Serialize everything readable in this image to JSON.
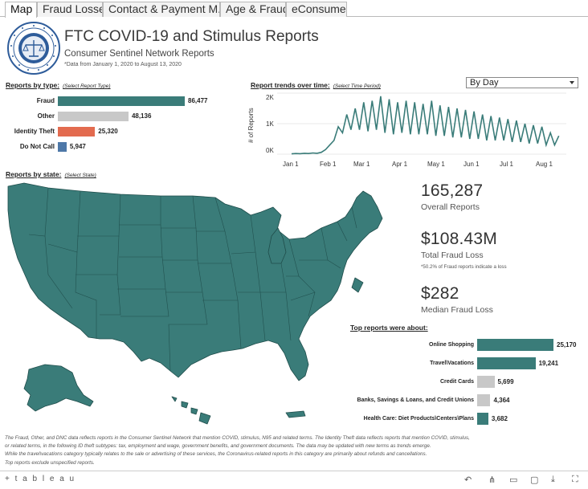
{
  "tabs": [
    {
      "label": "Map",
      "active": true
    },
    {
      "label": "Fraud Losses",
      "active": false
    },
    {
      "label": "Contact & Payment M...",
      "active": false
    },
    {
      "label": "Age & Fraud",
      "active": false
    },
    {
      "label": "eConsumer",
      "active": false
    }
  ],
  "header": {
    "title": "FTC COVID-19 and Stimulus Reports",
    "subtitle": "Consumer Sentinel Network Reports",
    "note": "*Data from January 1, 2020 to August 13, 2020"
  },
  "reports_by_type": {
    "title": "Reports by type:",
    "hint": "(Select Report Type)",
    "items": [
      {
        "label": "Fraud",
        "value_text": "86,477",
        "value": 86477,
        "color": "#3a7c79"
      },
      {
        "label": "Other",
        "value_text": "48,136",
        "value": 48136,
        "color": "#c8c8c8"
      },
      {
        "label": "Identity Theft",
        "value_text": "25,320",
        "value": 25320,
        "color": "#e36b4f"
      },
      {
        "label": "Do Not Call",
        "value_text": "5,947",
        "value": 5947,
        "color": "#4e78a8"
      }
    ]
  },
  "trend": {
    "title": "Report trends over time:",
    "hint": "(Select Time Period)",
    "period": "By Day",
    "ylabel": "# of Reports",
    "yticks": [
      "2K",
      "1K",
      "0K"
    ],
    "xticks": [
      "Jan 1",
      "Feb 1",
      "Mar 1",
      "Apr 1",
      "May 1",
      "Jun 1",
      "Jul 1",
      "Aug 1"
    ]
  },
  "state_map": {
    "title": "Reports by state:",
    "hint": "(Select State)",
    "color": "#3a7c79"
  },
  "kpis": {
    "overall_value": "165,287",
    "overall_label": "Overall Reports",
    "loss_value": "$108.43M",
    "loss_label": "Total Fraud Loss",
    "loss_note": "*50.2% of Fraud reports indicate a loss",
    "median_value": "$282",
    "median_label": "Median Fraud Loss"
  },
  "top_reports": {
    "title": "Top reports were about:",
    "items": [
      {
        "label": "Online Shopping",
        "value_text": "25,170",
        "value": 25170,
        "color": "#3a7c79"
      },
      {
        "label": "Travel\\Vacations",
        "value_text": "19,241",
        "value": 19241,
        "color": "#3a7c79"
      },
      {
        "label": "Credit Cards",
        "value_text": "5,699",
        "value": 5699,
        "color": "#c8c8c8"
      },
      {
        "label": "Banks, Savings & Loans, and Credit Unions",
        "value_text": "4,364",
        "value": 4364,
        "color": "#c8c8c8"
      },
      {
        "label": "Health Care: Diet Products\\Centers\\Plans",
        "value_text": "3,682",
        "value": 3682,
        "color": "#3a7c79"
      }
    ]
  },
  "footer": {
    "line1": "The Fraud, Other, and DNC data reflects reports in the Consumer Sentinel Network that mention COVID, stimulus, N95 and related terms.  The Identity Theft data reflects reports that mention COVID, stimulus,",
    "line2": "or related terms, in the following ID theft subtypes:  tax, employment and wage, government benefits, and government documents.  The data may be updated with new terms as trends emerge.",
    "line3": "While the travel\\vacations category typically relates to the sale or advertising of these services, the Coronavirus-related reports in this category are primarily about refunds and cancellations.",
    "line4": "Top reports exclude unspecified reports."
  },
  "bottom": {
    "logo": "+ t a b l e a u"
  },
  "chart_data": [
    {
      "type": "bar",
      "title": "Reports by type",
      "categories": [
        "Fraud",
        "Other",
        "Identity Theft",
        "Do Not Call"
      ],
      "values": [
        86477,
        48136,
        25320,
        5947
      ]
    },
    {
      "type": "line",
      "title": "Report trends over time",
      "ylabel": "# of Reports",
      "ylim": [
        0,
        2000
      ],
      "x_range": [
        "2020-01-01",
        "2020-08-13"
      ],
      "series": [
        {
          "name": "Reports per day",
          "approx_weekly_peaks": [
            20,
            30,
            40,
            60,
            300,
            900,
            1300,
            1500,
            1700,
            1750,
            1900,
            1800,
            1700,
            1750,
            1700,
            1650,
            1750,
            1600,
            1550,
            1500,
            1450,
            1400,
            1300,
            1250,
            1200,
            1150,
            1100,
            1000,
            950,
            900,
            700,
            600
          ],
          "approx_weekly_troughs": [
            10,
            15,
            20,
            30,
            150,
            450,
            700,
            800,
            800,
            750,
            800,
            700,
            650,
            700,
            650,
            650,
            650,
            600,
            600,
            550,
            550,
            500,
            500,
            450,
            450,
            450,
            400,
            400,
            350,
            350,
            300,
            300
          ]
        }
      ]
    },
    {
      "type": "bar",
      "title": "Top reports were about",
      "categories": [
        "Online Shopping",
        "Travel\\Vacations",
        "Credit Cards",
        "Banks, Savings & Loans, and Credit Unions",
        "Health Care: Diet Products\\Centers\\Plans"
      ],
      "values": [
        25170,
        19241,
        5699,
        4364,
        3682
      ]
    }
  ]
}
